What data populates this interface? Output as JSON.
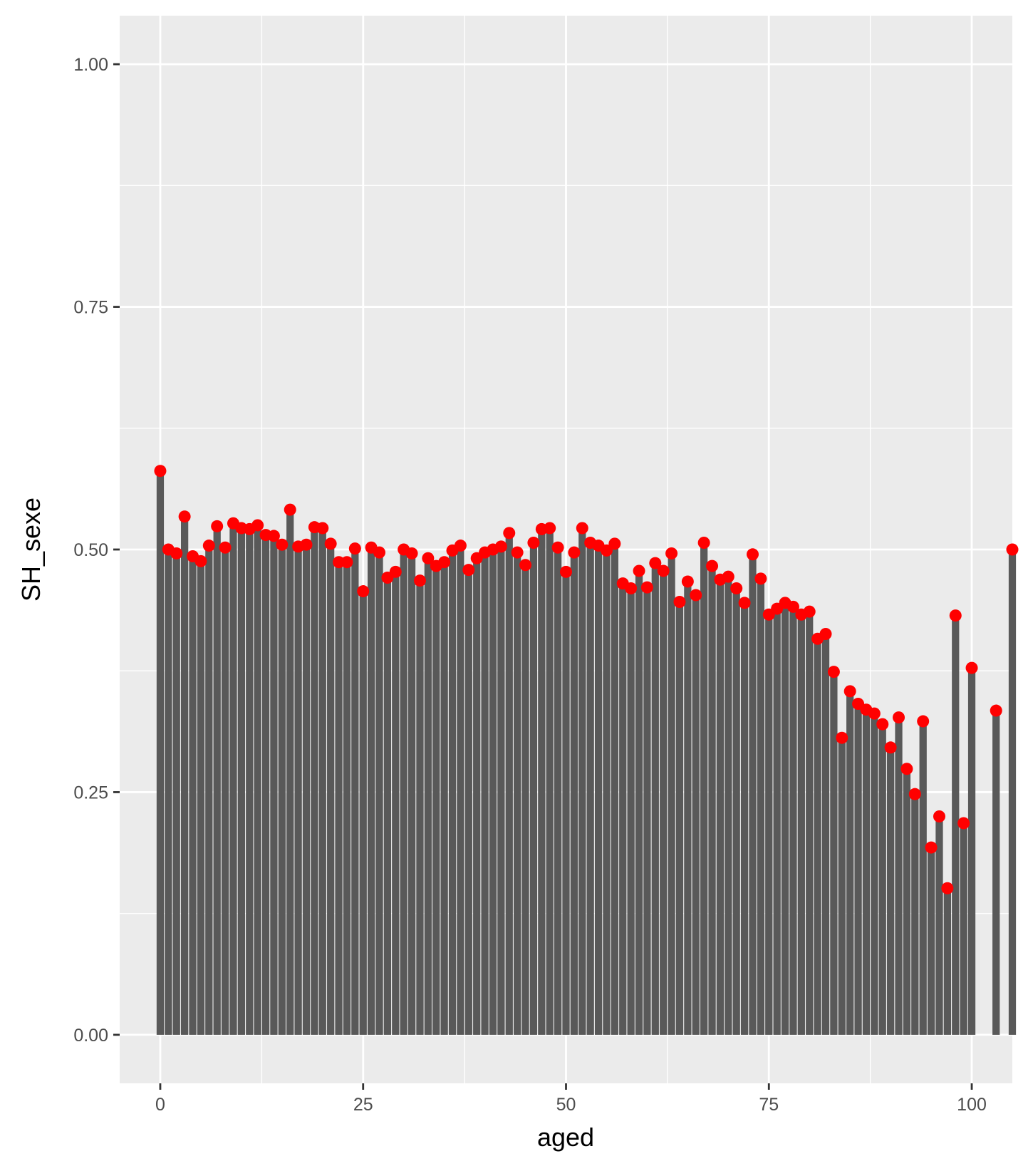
{
  "chart_data": {
    "type": "bar",
    "xlabel": "aged",
    "ylabel": "SH_sexe",
    "xlim": [
      -5,
      105
    ],
    "ylim": [
      -0.05,
      1.05
    ],
    "x_ticks": [
      0,
      25,
      50,
      75,
      100
    ],
    "x_tick_labels": [
      "0",
      "25",
      "50",
      "75",
      "100"
    ],
    "y_ticks": [
      0,
      0.25,
      0.5,
      0.75,
      1
    ],
    "y_tick_labels": [
      "0.00",
      "0.25",
      "0.50",
      "0.75",
      "1.00"
    ],
    "grid": true,
    "colors": {
      "panel": "#ebebeb",
      "grid": "#ffffff",
      "bar": "#595959",
      "point": "#ff0000"
    },
    "series": [
      {
        "x": [
          0,
          1,
          2,
          3,
          4,
          5,
          6,
          7,
          8,
          9,
          10,
          11,
          12,
          13,
          14,
          15,
          16,
          17,
          18,
          19,
          20,
          21,
          22,
          23,
          24,
          25,
          26,
          27,
          28,
          29,
          30,
          31,
          32,
          33,
          34,
          35,
          36,
          37,
          38,
          39,
          40,
          41,
          42,
          43,
          44,
          45,
          46,
          47,
          48,
          49,
          50,
          51,
          52,
          53,
          54,
          55,
          56,
          57,
          58,
          59,
          60,
          61,
          62,
          63,
          64,
          65,
          66,
          67,
          68,
          69,
          70,
          71,
          72,
          73,
          74,
          75,
          76,
          77,
          78,
          79,
          80,
          81,
          82,
          83,
          84,
          85,
          86,
          87,
          88,
          89,
          90,
          91,
          92,
          93,
          94,
          95,
          96,
          97,
          98,
          99,
          100,
          103,
          105
        ],
        "values": [
          0.581,
          0.5,
          0.496,
          0.534,
          0.493,
          0.488,
          0.504,
          0.524,
          0.502,
          0.527,
          0.522,
          0.521,
          0.525,
          0.515,
          0.514,
          0.505,
          0.541,
          0.503,
          0.505,
          0.523,
          0.522,
          0.506,
          0.487,
          0.487,
          0.501,
          0.457,
          0.502,
          0.497,
          0.471,
          0.477,
          0.5,
          0.496,
          0.468,
          0.491,
          0.483,
          0.487,
          0.499,
          0.504,
          0.479,
          0.491,
          0.497,
          0.5,
          0.503,
          0.517,
          0.497,
          0.484,
          0.507,
          0.521,
          0.522,
          0.502,
          0.477,
          0.497,
          0.522,
          0.507,
          0.504,
          0.499,
          0.506,
          0.465,
          0.46,
          0.478,
          0.461,
          0.486,
          0.478,
          0.496,
          0.446,
          0.467,
          0.453,
          0.507,
          0.483,
          0.469,
          0.472,
          0.46,
          0.445,
          0.495,
          0.47,
          0.433,
          0.439,
          0.445,
          0.441,
          0.433,
          0.436,
          0.408,
          0.413,
          0.374,
          0.306,
          0.354,
          0.341,
          0.335,
          0.331,
          0.32,
          0.296,
          0.327,
          0.274,
          0.248,
          0.323,
          0.193,
          0.225,
          0.151,
          0.432,
          0.218,
          0.378,
          0.334,
          0.5
        ]
      }
    ]
  }
}
